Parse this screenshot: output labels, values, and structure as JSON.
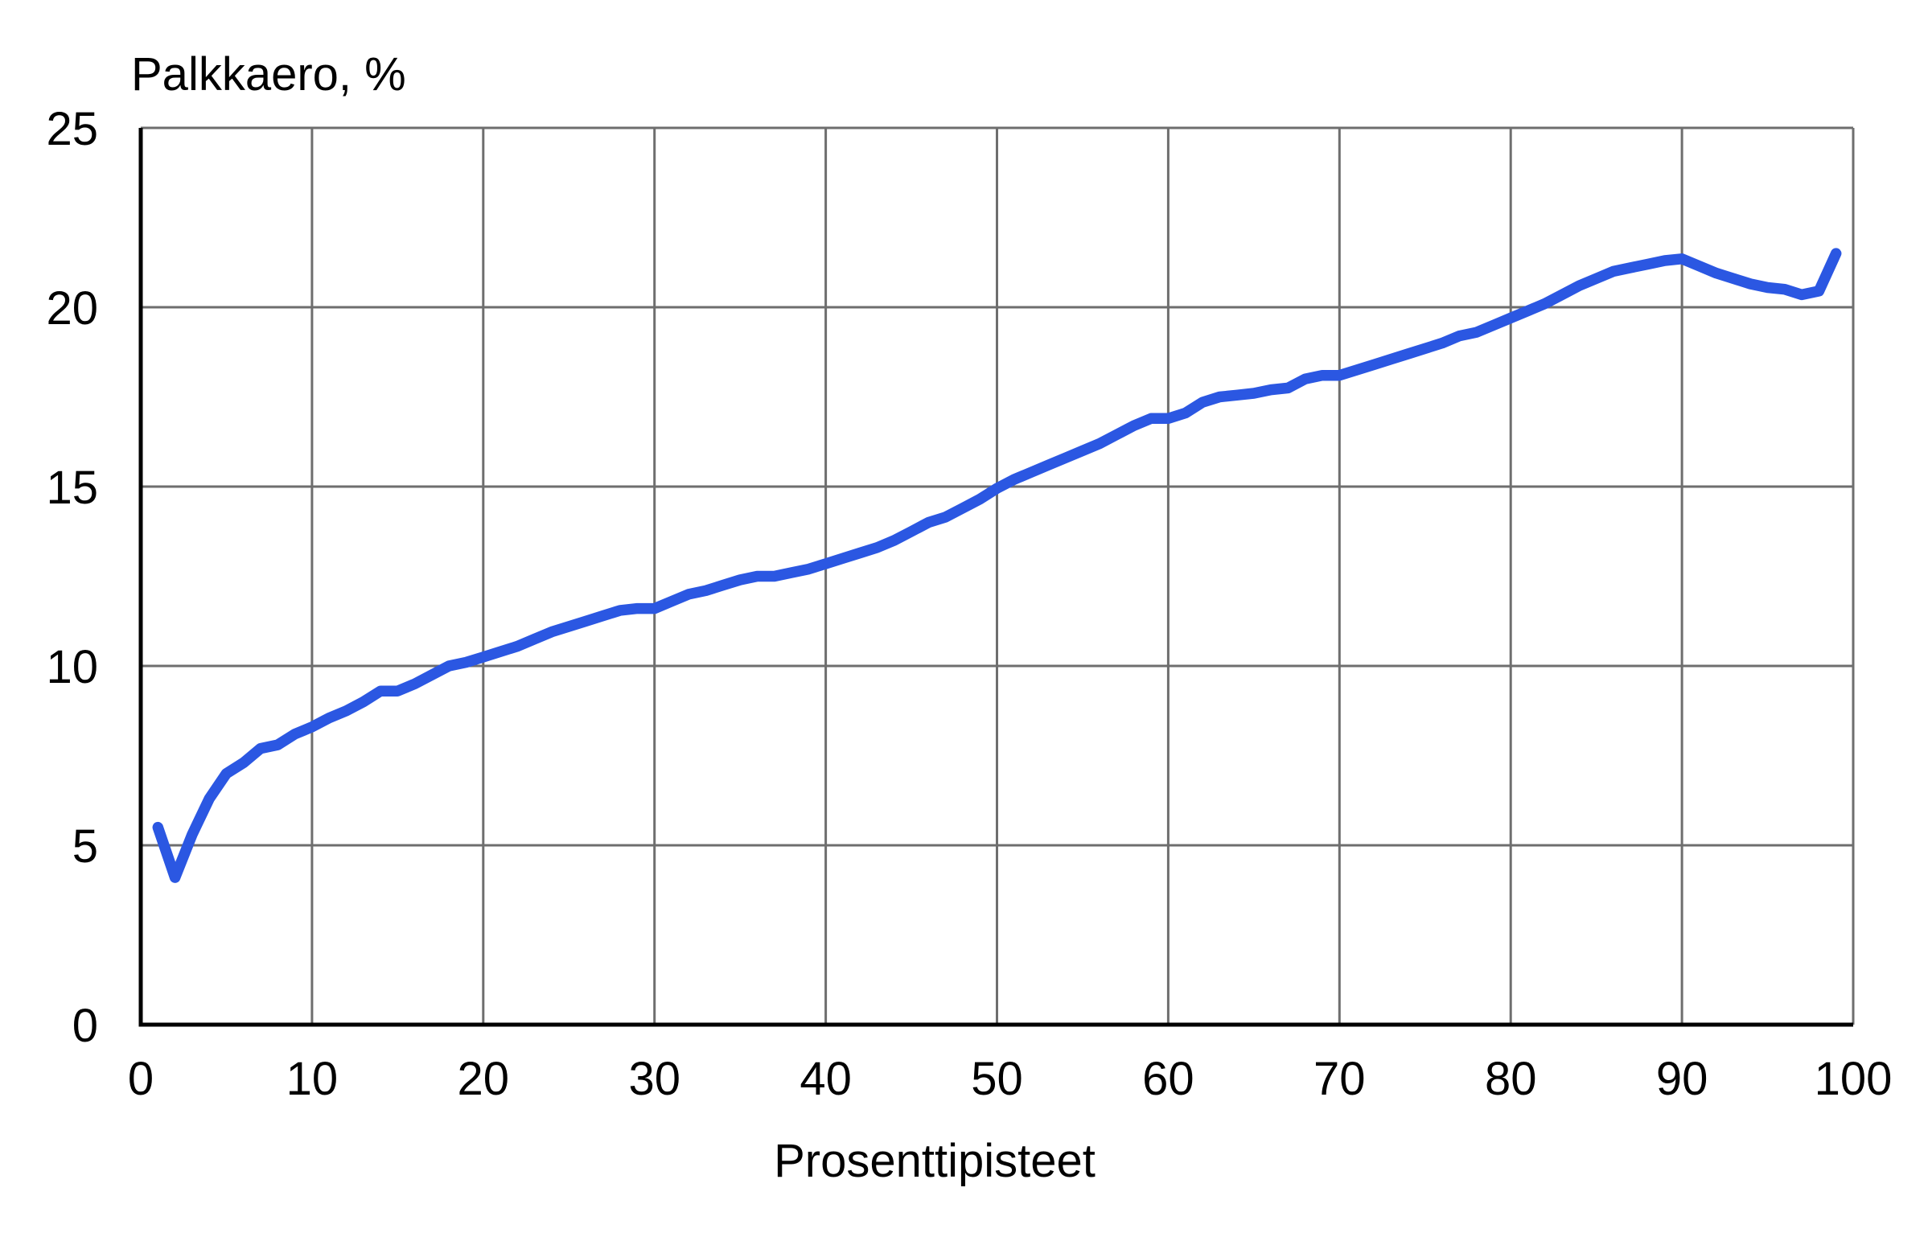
{
  "page": {
    "background_color": "#ffffff"
  },
  "style": {
    "line_color": "#2b57e2",
    "grid_color": "#6e6e6e",
    "axis_color": "#000000",
    "text_color": "#000000"
  },
  "chart_data": {
    "type": "line",
    "title": "Palkkaero, %",
    "xlabel": "Prosenttipisteet",
    "ylabel": "Palkkaero, %",
    "legend": "none",
    "grid": true,
    "xlim": [
      0,
      100
    ],
    "ylim": [
      0,
      25
    ],
    "x_ticks": [
      0,
      10,
      20,
      30,
      40,
      50,
      60,
      70,
      80,
      90,
      100
    ],
    "y_ticks": [
      0,
      5,
      10,
      15,
      20,
      25
    ],
    "series": [
      {
        "name": "Palkkaero",
        "color": "#2b57e2",
        "x": [
          1,
          2,
          3,
          4,
          5,
          6,
          7,
          8,
          9,
          10,
          11,
          12,
          13,
          14,
          15,
          16,
          17,
          18,
          19,
          20,
          21,
          22,
          23,
          24,
          25,
          26,
          27,
          28,
          29,
          30,
          31,
          32,
          33,
          34,
          35,
          36,
          37,
          38,
          39,
          40,
          41,
          42,
          43,
          44,
          45,
          46,
          47,
          48,
          49,
          50,
          51,
          52,
          53,
          54,
          55,
          56,
          57,
          58,
          59,
          60,
          61,
          62,
          63,
          64,
          65,
          66,
          67,
          68,
          69,
          70,
          71,
          72,
          73,
          74,
          75,
          76,
          77,
          78,
          79,
          80,
          81,
          82,
          83,
          84,
          85,
          86,
          87,
          88,
          89,
          90,
          91,
          92,
          93,
          94,
          95,
          96,
          97,
          98,
          99
        ],
        "values": [
          5.5,
          4.1,
          5.3,
          6.3,
          7.0,
          7.3,
          7.7,
          7.8,
          8.1,
          8.3,
          8.55,
          8.75,
          9.0,
          9.3,
          9.3,
          9.5,
          9.75,
          10.0,
          10.1,
          10.25,
          10.4,
          10.55,
          10.75,
          10.95,
          11.1,
          11.25,
          11.4,
          11.55,
          11.6,
          11.6,
          11.8,
          12.0,
          12.1,
          12.25,
          12.4,
          12.5,
          12.5,
          12.6,
          12.7,
          12.85,
          13.0,
          13.15,
          13.3,
          13.5,
          13.75,
          14.0,
          14.15,
          14.4,
          14.65,
          14.95,
          15.2,
          15.4,
          15.6,
          15.8,
          16.0,
          16.2,
          16.45,
          16.7,
          16.9,
          16.9,
          17.05,
          17.35,
          17.5,
          17.55,
          17.6,
          17.7,
          17.75,
          18.0,
          18.1,
          18.1,
          18.25,
          18.4,
          18.55,
          18.7,
          18.85,
          19.0,
          19.2,
          19.3,
          19.5,
          19.7,
          19.9,
          20.1,
          20.35,
          20.6,
          20.8,
          21.0,
          21.1,
          21.2,
          21.3,
          21.35,
          21.15,
          20.95,
          20.8,
          20.65,
          20.55,
          20.5,
          20.35,
          20.45,
          21.5
        ]
      }
    ]
  }
}
